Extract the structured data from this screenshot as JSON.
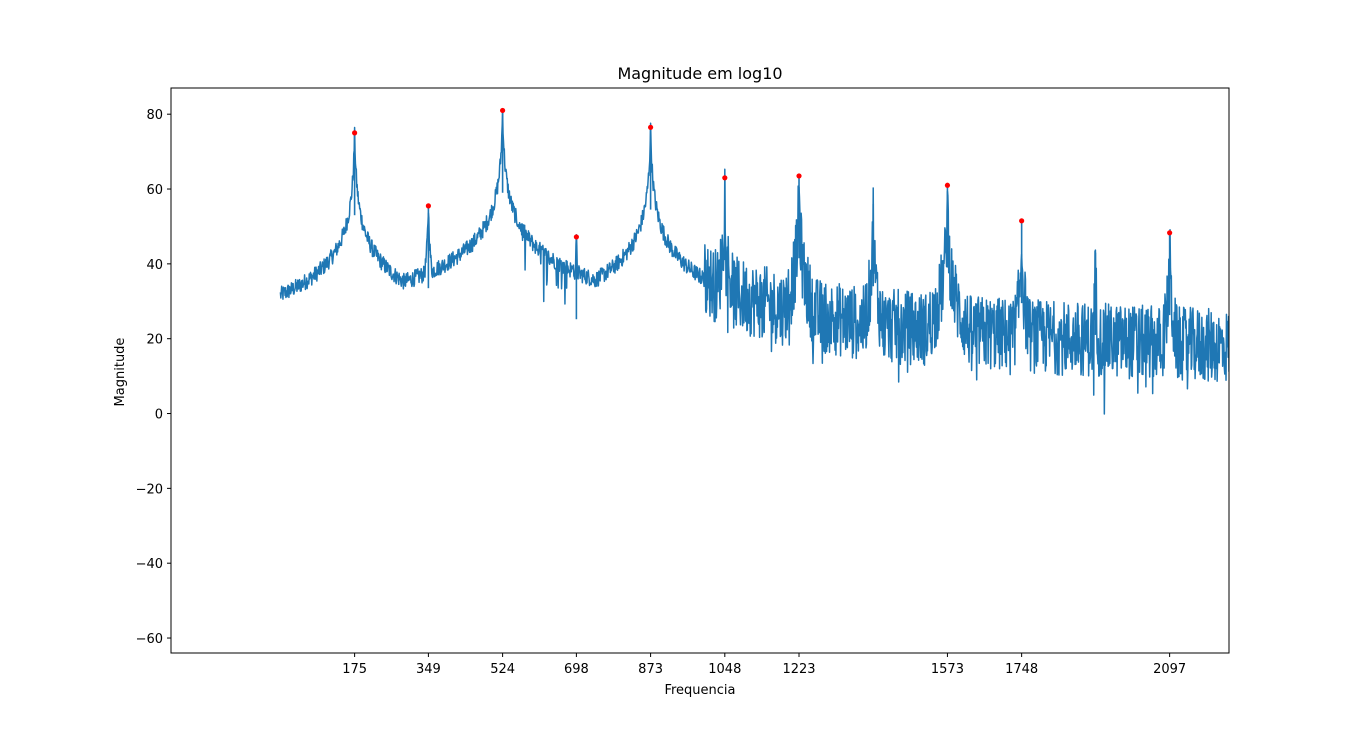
{
  "chart_data": {
    "type": "line",
    "title": "Magnitude em log10",
    "xlabel": "Frequencia",
    "ylabel": "Magnitude",
    "xlim": [
      -258,
      2237
    ],
    "ylim": [
      -64,
      87
    ],
    "yticks": [
      -60,
      -40,
      -20,
      0,
      20,
      40,
      60,
      80
    ],
    "xticks": [
      175,
      349,
      524,
      698,
      873,
      1048,
      1223,
      1573,
      1748,
      2097
    ],
    "grid": false,
    "legend": "none",
    "colors": {
      "line": "#1f77b4",
      "peaks": "#ff0000"
    },
    "peaks": [
      {
        "x": 175,
        "y": 75
      },
      {
        "x": 349,
        "y": 55.5
      },
      {
        "x": 524,
        "y": 81
      },
      {
        "x": 698,
        "y": 47.2
      },
      {
        "x": 873,
        "y": 76.5
      },
      {
        "x": 1048,
        "y": 63
      },
      {
        "x": 1223,
        "y": 63.5
      },
      {
        "x": 1573,
        "y": 61
      },
      {
        "x": 1748,
        "y": 51.5
      },
      {
        "x": 2097,
        "y": 48.3
      }
    ],
    "extra_peaks": [
      {
        "x": 1398,
        "y": 56
      },
      {
        "x": 1922,
        "y": 43
      }
    ],
    "series_x_range": [
      0,
      2237
    ]
  }
}
